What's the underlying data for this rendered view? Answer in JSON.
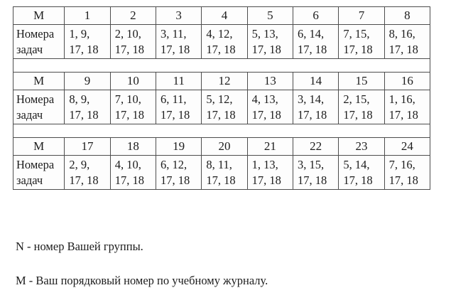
{
  "tables": [
    {
      "m_label": "М",
      "row_label": "Номера\nзадач",
      "columns": [
        "1",
        "2",
        "3",
        "4",
        "5",
        "6",
        "7",
        "8"
      ],
      "tasks": [
        "1, 9,\n17, 18",
        "2, 10,\n17, 18",
        "3, 11,\n17, 18",
        "4, 12,\n17, 18",
        "5, 13,\n17, 18",
        "6, 14,\n17, 18",
        "7, 15,\n17, 18",
        "8, 16,\n17, 18"
      ]
    },
    {
      "m_label": "М",
      "row_label": "Номера\nзадач",
      "columns": [
        "9",
        "10",
        "11",
        "12",
        "13",
        "14",
        "15",
        "16"
      ],
      "tasks": [
        "8, 9,\n17, 18",
        "7, 10,\n17, 18",
        "6, 11,\n17, 18",
        "5, 12,\n17, 18",
        "4, 13,\n17, 18",
        "3, 14,\n17, 18",
        "2, 15,\n17, 18",
        "1, 16,\n17, 18"
      ]
    },
    {
      "m_label": "М",
      "row_label": "Номера\nзадач",
      "columns": [
        "17",
        "18",
        "19",
        "20",
        "21",
        "22",
        "23",
        "24"
      ],
      "tasks": [
        "2, 9,\n17, 18",
        "4, 10,\n17, 18",
        "6, 12,\n17, 18",
        "8, 11,\n17, 18",
        "1, 13,\n17, 18",
        "3, 15,\n17, 18",
        "5, 14,\n17, 18",
        "7, 16,\n17, 18"
      ]
    }
  ],
  "notes": [
    "N - номер Вашей группы.",
    "М - Ваш порядковый номер по учебному журналу."
  ]
}
